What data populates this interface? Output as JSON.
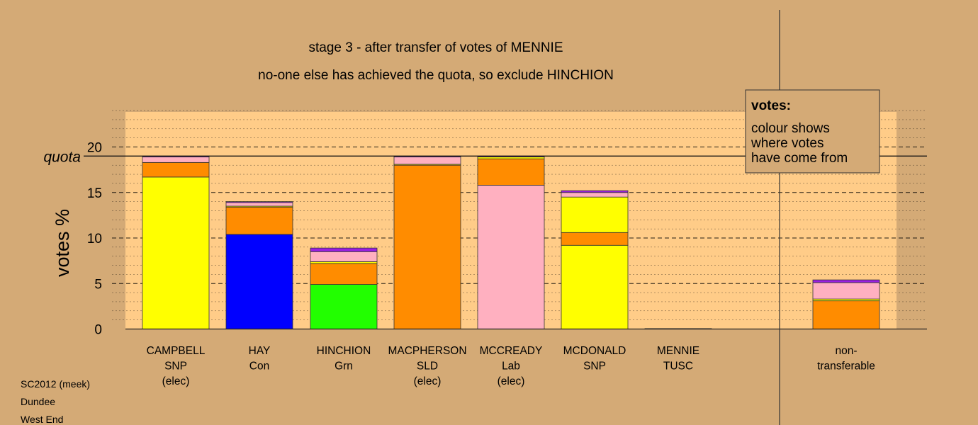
{
  "chart_data": {
    "type": "bar",
    "stacked": true,
    "title": "stage 3 - after transfer of votes of MENNIE",
    "subtitle": "no-one else has achieved the quota, so exclude HINCHION",
    "ylabel": "votes %",
    "ylim": [
      0,
      24
    ],
    "yticks": [
      0,
      5,
      10,
      15,
      20
    ],
    "quota": 19.0,
    "quota_label": "quota",
    "grid": true,
    "categories": [
      {
        "lines": [
          "CAMPBELL",
          "SNP",
          "(elec)"
        ]
      },
      {
        "lines": [
          "HAY",
          "Con"
        ]
      },
      {
        "lines": [
          "HINCHION",
          "Grn"
        ]
      },
      {
        "lines": [
          "MACPHERSON",
          "SLD",
          "(elec)"
        ]
      },
      {
        "lines": [
          "MCCREADY",
          "Lab",
          "(elec)"
        ]
      },
      {
        "lines": [
          "MCDONALD",
          "SNP"
        ]
      },
      {
        "lines": [
          "MENNIE",
          "TUSC"
        ]
      },
      {
        "lines": [
          "non-",
          "transferable"
        ]
      }
    ],
    "bars": [
      {
        "candidate": "CAMPBELL",
        "segments": [
          {
            "source": "SNP",
            "color": "#ffff00",
            "value": 16.7
          },
          {
            "source": "SLD",
            "color": "#ff8c00",
            "value": 1.6
          },
          {
            "source": "Lab",
            "color": "#ffb0c0",
            "value": 0.6
          },
          {
            "source": "TUSC",
            "color": "#9a1fe0",
            "value": 0.1
          }
        ]
      },
      {
        "candidate": "HAY",
        "segments": [
          {
            "source": "Con",
            "color": "#0000ff",
            "value": 10.4
          },
          {
            "source": "SLD",
            "color": "#ff8c00",
            "value": 3.0
          },
          {
            "source": "SNP",
            "color": "#ffff00",
            "value": 0.1
          },
          {
            "source": "Lab",
            "color": "#ffb0c0",
            "value": 0.4
          },
          {
            "source": "TUSC",
            "color": "#9a1fe0",
            "value": 0.1
          }
        ]
      },
      {
        "candidate": "HINCHION",
        "segments": [
          {
            "source": "Grn",
            "color": "#22ff00",
            "value": 4.9
          },
          {
            "source": "SLD",
            "color": "#ff8c00",
            "value": 2.3
          },
          {
            "source": "SNP",
            "color": "#ffff00",
            "value": 0.2
          },
          {
            "source": "Lab",
            "color": "#ffb0c0",
            "value": 1.1
          },
          {
            "source": "TUSC",
            "color": "#9a1fe0",
            "value": 0.4
          }
        ]
      },
      {
        "candidate": "MACPHERSON",
        "segments": [
          {
            "source": "SLD",
            "color": "#ff8c00",
            "value": 18.0
          },
          {
            "source": "SNP",
            "color": "#ffff00",
            "value": 0.1
          },
          {
            "source": "Lab",
            "color": "#ffb0c0",
            "value": 0.8
          },
          {
            "source": "TUSC",
            "color": "#9a1fe0",
            "value": 0.1
          }
        ]
      },
      {
        "candidate": "MCCREADY",
        "segments": [
          {
            "source": "Lab",
            "color": "#ffb0c0",
            "value": 15.8
          },
          {
            "source": "SLD",
            "color": "#ff8c00",
            "value": 2.9
          },
          {
            "source": "SNP",
            "color": "#ffff00",
            "value": 0.2
          },
          {
            "source": "TUSC",
            "color": "#9a1fe0",
            "value": 0.1
          }
        ]
      },
      {
        "candidate": "MCDONALD",
        "segments": [
          {
            "source": "SNP",
            "color": "#ffff00",
            "value": 9.2
          },
          {
            "source": "SLD",
            "color": "#ff8c00",
            "value": 1.4
          },
          {
            "source": "SNP",
            "color": "#ffff00",
            "value": 3.9
          },
          {
            "source": "Lab",
            "color": "#ffb0c0",
            "value": 0.5
          },
          {
            "source": "TUSC",
            "color": "#9a1fe0",
            "value": 0.2
          }
        ]
      },
      {
        "candidate": "MENNIE",
        "segments": [
          {
            "source": "TUSC",
            "color": "#9a1fe0",
            "value": 0.05
          }
        ]
      },
      {
        "candidate": "non-transferable",
        "segments": [
          {
            "source": "SLD",
            "color": "#ff8c00",
            "value": 3.1
          },
          {
            "source": "SNP",
            "color": "#ffff00",
            "value": 0.2
          },
          {
            "source": "Lab",
            "color": "#ffb0c0",
            "value": 1.8
          },
          {
            "source": "TUSC",
            "color": "#9a1fe0",
            "value": 0.3
          }
        ]
      }
    ]
  },
  "legend": {
    "heading": "votes:",
    "lines": [
      "colour shows",
      "where votes",
      "have come from"
    ]
  },
  "footer": [
    "SC2012 (meek)",
    "Dundee",
    "West End"
  ],
  "colors": {
    "page_background": "#d4aa76",
    "plot_background": "#ffcc88",
    "grid": "#000000"
  }
}
